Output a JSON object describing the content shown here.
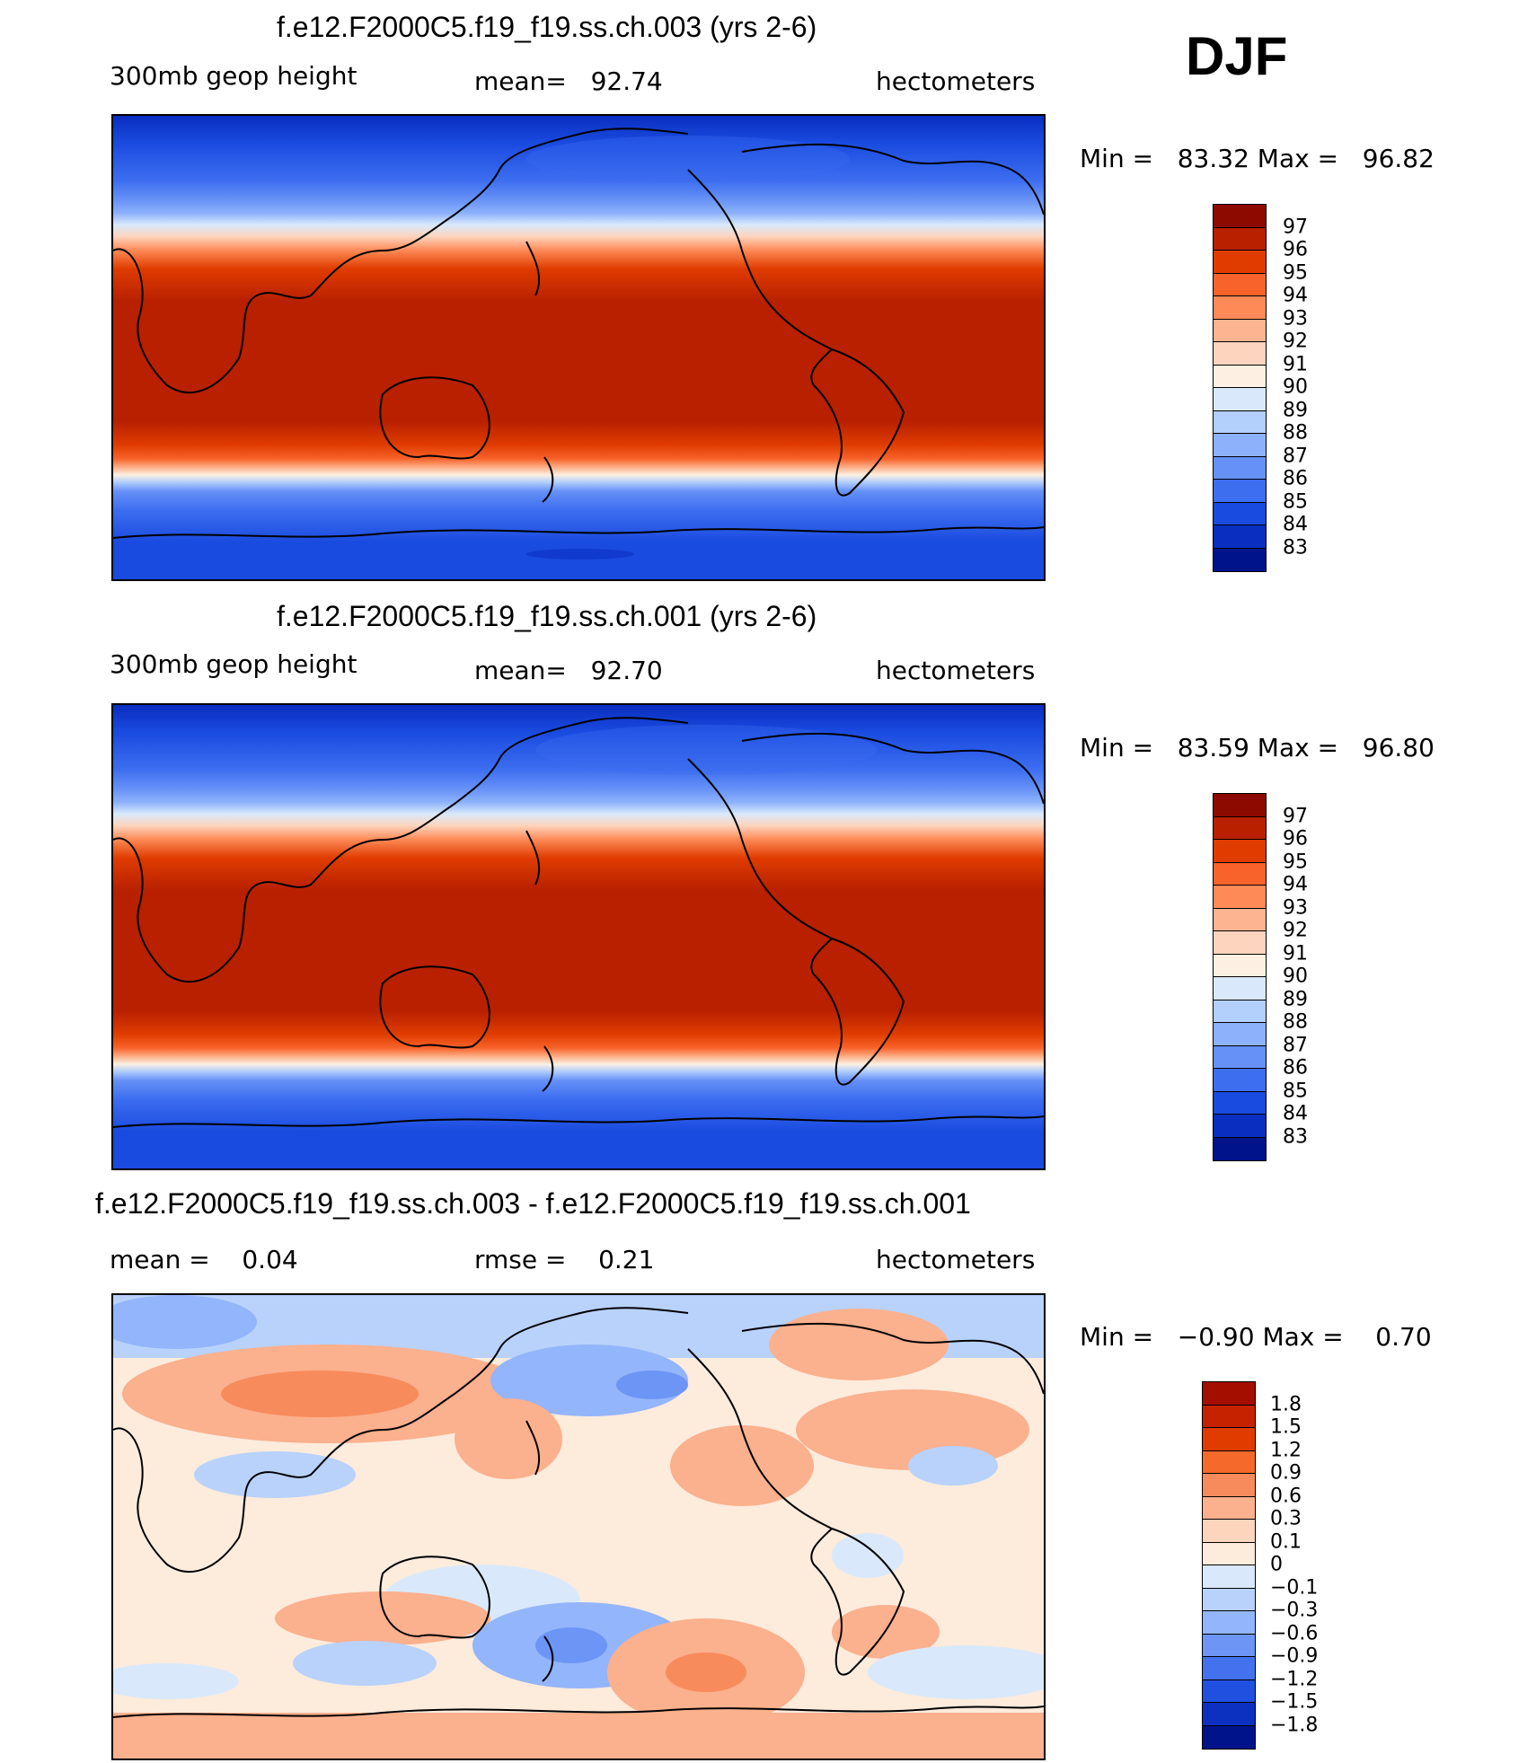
{
  "season_label": "DJF",
  "panels": [
    {
      "title": "f.e12.F2000C5.f19_f19.ss.ch.003 (yrs 2-6)",
      "left_label": "300mb geop height",
      "mid_label": "mean=   92.74",
      "units": "hectometers",
      "minmax": "Min =   83.32 Max =   96.82"
    },
    {
      "title": "f.e12.F2000C5.f19_f19.ss.ch.001 (yrs 2-6)",
      "left_label": "300mb geop height",
      "mid_label": "mean=   92.70",
      "units": "hectometers",
      "minmax": "Min =   83.59 Max =   96.80"
    },
    {
      "title": "f.e12.F2000C5.f19_f19.ss.ch.003 - f.e12.F2000C5.f19_f19.ss.ch.001",
      "left_label": "mean =    0.04",
      "mid_label": "rmse =    0.21",
      "units": "hectometers",
      "minmax": "Min =   −0.90 Max =    0.70"
    }
  ],
  "colorbar_abs": {
    "labels": [
      "97",
      "96",
      "95",
      "94",
      "93",
      "92",
      "91",
      "90",
      "89",
      "88",
      "87",
      "86",
      "85",
      "84",
      "83"
    ],
    "colors": [
      "#8c0a00",
      "#b82000",
      "#e03c00",
      "#f8632b",
      "#fd8a57",
      "#fcb590",
      "#fdd5be",
      "#fdf0e2",
      "#d9e9fb",
      "#b3cffb",
      "#8db2fb",
      "#6691f7",
      "#3d6ef0",
      "#1a4be0",
      "#0a2ec0",
      "#00138a"
    ]
  },
  "colorbar_diff": {
    "labels": [
      "1.8",
      "1.5",
      "1.2",
      "0.9",
      "0.6",
      "0.3",
      "0.1",
      "0",
      "−0.1",
      "−0.3",
      "−0.6",
      "−0.9",
      "−1.2",
      "−1.5",
      "−1.8"
    ],
    "colors": [
      "#a30e00",
      "#c62200",
      "#e03c00",
      "#f56a2a",
      "#f88b5c",
      "#fbb08e",
      "#fdd4bc",
      "#fdebdc",
      "#d9e9fb",
      "#b8d2fb",
      "#93b5fb",
      "#6c95f6",
      "#4471ee",
      "#2050e0",
      "#0c30c0",
      "#00138a"
    ]
  }
}
